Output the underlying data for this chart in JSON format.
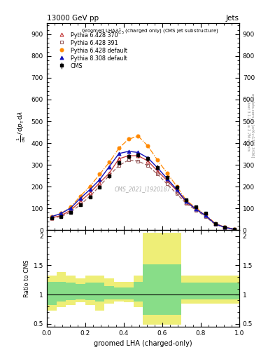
{
  "title_left": "13000 GeV pp",
  "title_right": "Jets",
  "watermark": "CMS_2021_I1920187",
  "xlabel": "groomed LHA (charged-only)",
  "ylabel_main_lines": [
    "mathrm d^{2}N",
    "mathrm d p_T mathrm d lambda",
    "1"
  ],
  "ylabel_ratio": "Ratio to CMS",
  "right_label_top": "Rivet 3.1.10, ≥ 2.7M events",
  "right_label_bot": "mcplots.cern.ch [arXiv:1306.3436]",
  "cms_x": [
    0.025,
    0.075,
    0.125,
    0.175,
    0.225,
    0.275,
    0.325,
    0.375,
    0.425,
    0.475,
    0.525,
    0.575,
    0.625,
    0.675,
    0.725,
    0.775,
    0.825,
    0.875,
    0.925,
    0.975
  ],
  "cms_y": [
    55,
    62,
    82,
    118,
    152,
    198,
    248,
    310,
    338,
    345,
    328,
    288,
    242,
    198,
    138,
    108,
    78,
    30,
    14,
    5
  ],
  "cms_yerr": [
    4,
    4,
    5,
    6,
    7,
    8,
    9,
    10,
    11,
    11,
    11,
    11,
    9,
    9,
    7,
    7,
    6,
    4,
    3,
    2
  ],
  "py6_370_y": [
    57,
    67,
    92,
    132,
    172,
    218,
    262,
    328,
    342,
    342,
    318,
    272,
    228,
    182,
    128,
    97,
    67,
    29,
    13,
    4
  ],
  "py6_391_y": [
    57,
    62,
    84,
    117,
    157,
    202,
    252,
    297,
    322,
    317,
    297,
    257,
    212,
    167,
    122,
    92,
    62,
    26,
    12,
    4
  ],
  "py6_def_y": [
    62,
    77,
    107,
    157,
    202,
    257,
    312,
    377,
    418,
    432,
    387,
    322,
    262,
    202,
    137,
    102,
    72,
    31,
    14,
    5
  ],
  "py8_def_y": [
    62,
    77,
    102,
    147,
    187,
    232,
    292,
    352,
    362,
    357,
    332,
    287,
    237,
    187,
    132,
    97,
    67,
    29,
    13,
    4
  ],
  "x_bins": [
    0.0,
    0.05,
    0.1,
    0.15,
    0.2,
    0.25,
    0.3,
    0.35,
    0.4,
    0.45,
    0.5,
    0.55,
    0.6,
    0.65,
    0.7,
    0.75,
    0.8,
    0.85,
    0.9,
    0.95,
    1.0
  ],
  "ratio_yellow_lo": [
    0.72,
    0.78,
    0.82,
    0.87,
    0.82,
    0.72,
    0.85,
    0.88,
    0.87,
    0.78,
    0.48,
    0.48,
    0.48,
    0.48,
    0.85,
    0.85,
    0.85,
    0.85,
    0.85,
    0.85
  ],
  "ratio_yellow_hi": [
    1.32,
    1.38,
    1.32,
    1.28,
    1.32,
    1.32,
    1.28,
    1.22,
    1.22,
    1.32,
    2.05,
    2.05,
    2.05,
    2.05,
    1.32,
    1.32,
    1.32,
    1.32,
    1.32,
    1.32
  ],
  "ratio_green_lo": [
    0.82,
    0.88,
    0.9,
    0.92,
    0.9,
    0.88,
    0.92,
    0.92,
    0.92,
    0.88,
    0.65,
    0.65,
    0.65,
    0.65,
    0.92,
    0.92,
    0.92,
    0.92,
    0.92,
    0.92
  ],
  "ratio_green_hi": [
    1.22,
    1.22,
    1.2,
    1.18,
    1.2,
    1.2,
    1.14,
    1.12,
    1.12,
    1.22,
    1.52,
    1.52,
    1.52,
    1.52,
    1.2,
    1.2,
    1.2,
    1.2,
    1.2,
    1.2
  ],
  "color_py6_370": "#c03030",
  "color_py6_391": "#9a6060",
  "color_py6_def": "#ff8800",
  "color_py8_def": "#1111bb",
  "ylim_main": [
    0,
    950
  ],
  "ylim_ratio": [
    0.45,
    2.1
  ],
  "yticks_main": [
    0,
    100,
    200,
    300,
    400,
    500,
    600,
    700,
    800,
    900
  ],
  "yticks_ratio": [
    0.5,
    1.0,
    1.5,
    2.0
  ],
  "bg_color": "#ffffff"
}
